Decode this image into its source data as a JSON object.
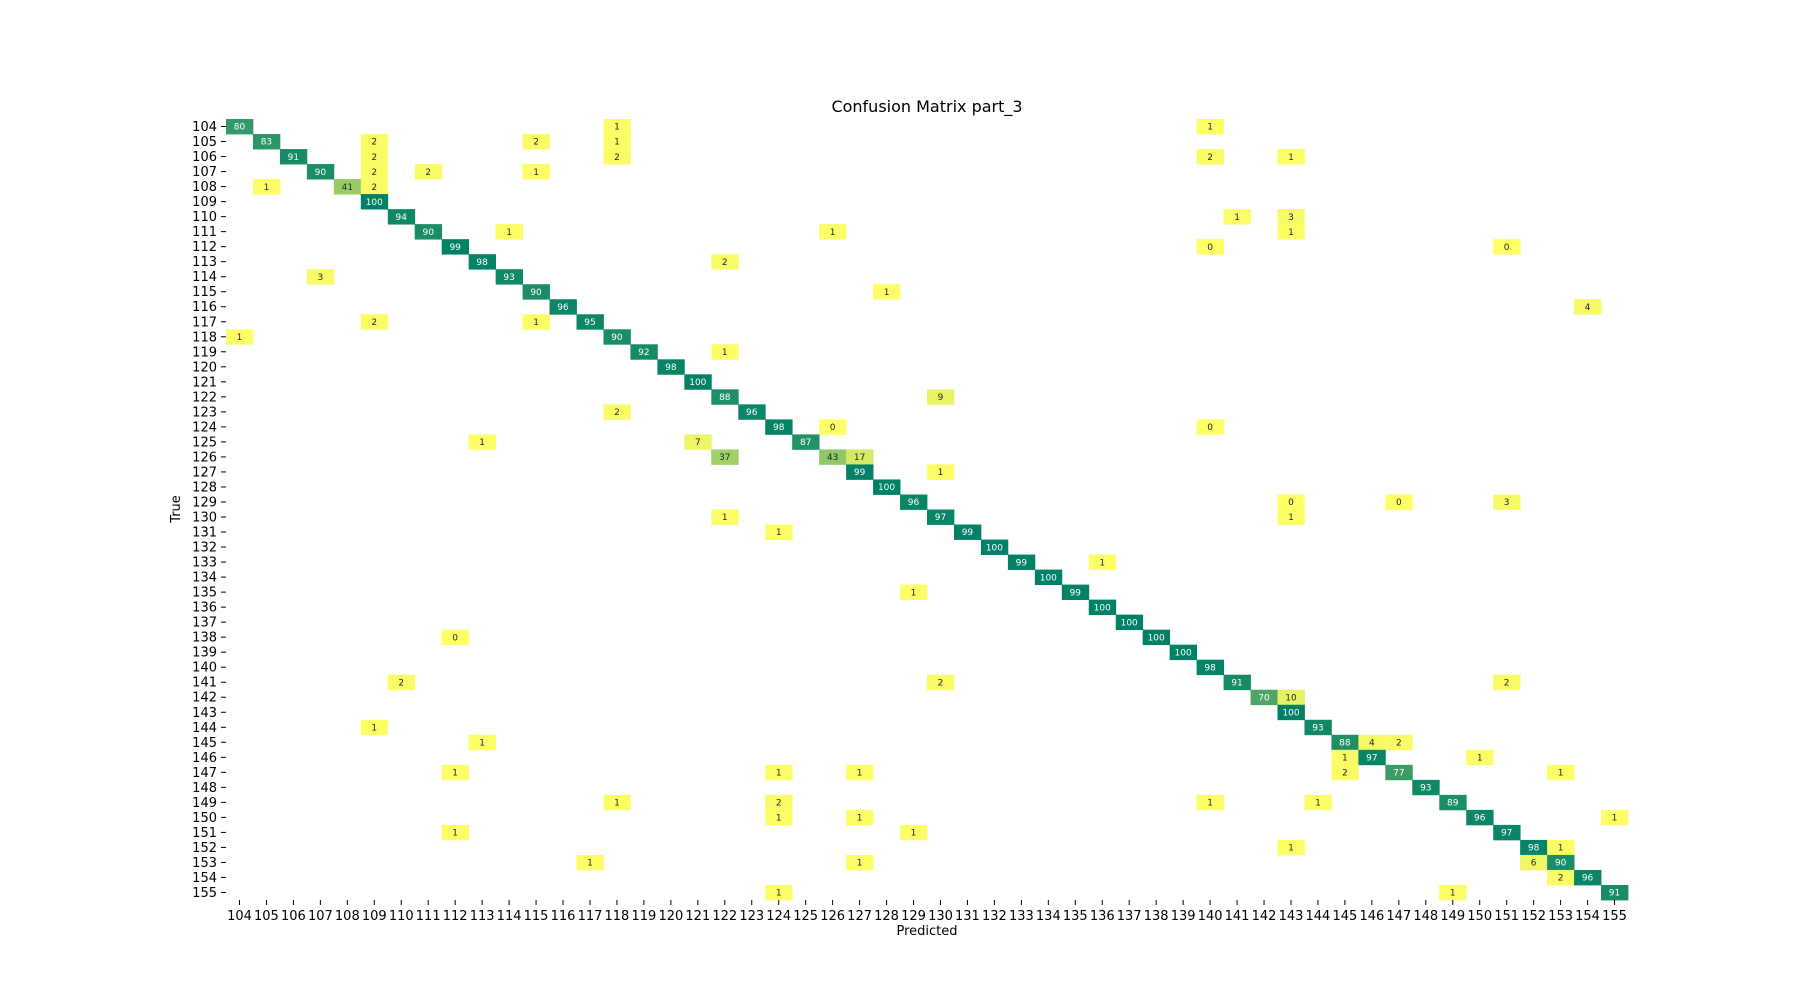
{
  "chart_data": {
    "type": "heatmap",
    "title": "Confusion Matrix part_3",
    "xlabel": "Predicted",
    "ylabel": "True",
    "labels": [
      "104",
      "105",
      "106",
      "107",
      "108",
      "109",
      "110",
      "111",
      "112",
      "113",
      "114",
      "115",
      "116",
      "117",
      "118",
      "119",
      "120",
      "121",
      "122",
      "123",
      "124",
      "125",
      "126",
      "127",
      "128",
      "129",
      "130",
      "131",
      "132",
      "133",
      "134",
      "135",
      "136",
      "137",
      "138",
      "139",
      "140",
      "141",
      "142",
      "143",
      "144",
      "145",
      "146",
      "147",
      "148",
      "149",
      "150",
      "151",
      "152",
      "153",
      "154",
      "155"
    ],
    "cells": [
      {
        "true": "104",
        "pred": "104",
        "value": 80
      },
      {
        "true": "104",
        "pred": "118",
        "value": 1
      },
      {
        "true": "104",
        "pred": "140",
        "value": 1
      },
      {
        "true": "105",
        "pred": "105",
        "value": 83
      },
      {
        "true": "105",
        "pred": "109",
        "value": 2
      },
      {
        "true": "105",
        "pred": "115",
        "value": 2
      },
      {
        "true": "105",
        "pred": "118",
        "value": 1
      },
      {
        "true": "106",
        "pred": "106",
        "value": 91
      },
      {
        "true": "106",
        "pred": "109",
        "value": 2
      },
      {
        "true": "106",
        "pred": "118",
        "value": 2
      },
      {
        "true": "106",
        "pred": "140",
        "value": 2
      },
      {
        "true": "106",
        "pred": "143",
        "value": 1
      },
      {
        "true": "107",
        "pred": "107",
        "value": 90
      },
      {
        "true": "107",
        "pred": "109",
        "value": 2
      },
      {
        "true": "107",
        "pred": "111",
        "value": 2
      },
      {
        "true": "107",
        "pred": "115",
        "value": 1
      },
      {
        "true": "108",
        "pred": "105",
        "value": 1
      },
      {
        "true": "108",
        "pred": "108",
        "value": 41
      },
      {
        "true": "108",
        "pred": "109",
        "value": 2
      },
      {
        "true": "109",
        "pred": "109",
        "value": 100
      },
      {
        "true": "110",
        "pred": "110",
        "value": 94
      },
      {
        "true": "110",
        "pred": "141",
        "value": 1
      },
      {
        "true": "110",
        "pred": "143",
        "value": 3
      },
      {
        "true": "111",
        "pred": "111",
        "value": 90
      },
      {
        "true": "111",
        "pred": "114",
        "value": 1
      },
      {
        "true": "111",
        "pred": "126",
        "value": 1
      },
      {
        "true": "111",
        "pred": "143",
        "value": 1
      },
      {
        "true": "112",
        "pred": "112",
        "value": 99
      },
      {
        "true": "112",
        "pred": "140",
        "value": 0
      },
      {
        "true": "112",
        "pred": "151",
        "value": 0
      },
      {
        "true": "113",
        "pred": "113",
        "value": 98
      },
      {
        "true": "113",
        "pred": "122",
        "value": 2
      },
      {
        "true": "114",
        "pred": "107",
        "value": 3
      },
      {
        "true": "114",
        "pred": "114",
        "value": 93
      },
      {
        "true": "115",
        "pred": "115",
        "value": 90
      },
      {
        "true": "115",
        "pred": "128",
        "value": 1
      },
      {
        "true": "116",
        "pred": "116",
        "value": 96
      },
      {
        "true": "116",
        "pred": "154",
        "value": 4
      },
      {
        "true": "117",
        "pred": "109",
        "value": 2
      },
      {
        "true": "117",
        "pred": "115",
        "value": 1
      },
      {
        "true": "117",
        "pred": "117",
        "value": 95
      },
      {
        "true": "118",
        "pred": "104",
        "value": 1
      },
      {
        "true": "118",
        "pred": "118",
        "value": 90
      },
      {
        "true": "119",
        "pred": "119",
        "value": 92
      },
      {
        "true": "119",
        "pred": "122",
        "value": 1
      },
      {
        "true": "120",
        "pred": "120",
        "value": 98
      },
      {
        "true": "121",
        "pred": "121",
        "value": 100
      },
      {
        "true": "122",
        "pred": "122",
        "value": 88
      },
      {
        "true": "122",
        "pred": "130",
        "value": 9
      },
      {
        "true": "123",
        "pred": "118",
        "value": 2
      },
      {
        "true": "123",
        "pred": "123",
        "value": 96
      },
      {
        "true": "124",
        "pred": "124",
        "value": 98
      },
      {
        "true": "124",
        "pred": "126",
        "value": 0
      },
      {
        "true": "124",
        "pred": "140",
        "value": 0
      },
      {
        "true": "125",
        "pred": "113",
        "value": 1
      },
      {
        "true": "125",
        "pred": "121",
        "value": 7
      },
      {
        "true": "125",
        "pred": "125",
        "value": 87
      },
      {
        "true": "126",
        "pred": "122",
        "value": 37
      },
      {
        "true": "126",
        "pred": "126",
        "value": 43
      },
      {
        "true": "126",
        "pred": "127",
        "value": 17
      },
      {
        "true": "127",
        "pred": "127",
        "value": 99
      },
      {
        "true": "127",
        "pred": "130",
        "value": 1
      },
      {
        "true": "128",
        "pred": "128",
        "value": 100
      },
      {
        "true": "129",
        "pred": "129",
        "value": 96
      },
      {
        "true": "129",
        "pred": "143",
        "value": 0
      },
      {
        "true": "129",
        "pred": "147",
        "value": 0
      },
      {
        "true": "129",
        "pred": "151",
        "value": 3
      },
      {
        "true": "130",
        "pred": "122",
        "value": 1
      },
      {
        "true": "130",
        "pred": "130",
        "value": 97
      },
      {
        "true": "130",
        "pred": "143",
        "value": 1
      },
      {
        "true": "131",
        "pred": "124",
        "value": 1
      },
      {
        "true": "131",
        "pred": "131",
        "value": 99
      },
      {
        "true": "132",
        "pred": "132",
        "value": 100
      },
      {
        "true": "133",
        "pred": "133",
        "value": 99
      },
      {
        "true": "133",
        "pred": "136",
        "value": 1
      },
      {
        "true": "134",
        "pred": "134",
        "value": 100
      },
      {
        "true": "135",
        "pred": "129",
        "value": 1
      },
      {
        "true": "135",
        "pred": "135",
        "value": 99
      },
      {
        "true": "136",
        "pred": "136",
        "value": 100
      },
      {
        "true": "137",
        "pred": "137",
        "value": 100
      },
      {
        "true": "138",
        "pred": "112",
        "value": 0
      },
      {
        "true": "138",
        "pred": "138",
        "value": 100
      },
      {
        "true": "139",
        "pred": "139",
        "value": 100
      },
      {
        "true": "140",
        "pred": "140",
        "value": 98
      },
      {
        "true": "141",
        "pred": "110",
        "value": 2
      },
      {
        "true": "141",
        "pred": "130",
        "value": 2
      },
      {
        "true": "141",
        "pred": "141",
        "value": 91
      },
      {
        "true": "141",
        "pred": "151",
        "value": 2
      },
      {
        "true": "142",
        "pred": "142",
        "value": 70
      },
      {
        "true": "142",
        "pred": "143",
        "value": 10
      },
      {
        "true": "143",
        "pred": "143",
        "value": 100
      },
      {
        "true": "144",
        "pred": "109",
        "value": 1
      },
      {
        "true": "144",
        "pred": "144",
        "value": 93
      },
      {
        "true": "145",
        "pred": "113",
        "value": 1
      },
      {
        "true": "145",
        "pred": "145",
        "value": 88
      },
      {
        "true": "145",
        "pred": "146",
        "value": 4
      },
      {
        "true": "145",
        "pred": "147",
        "value": 2
      },
      {
        "true": "146",
        "pred": "145",
        "value": 1
      },
      {
        "true": "146",
        "pred": "146",
        "value": 97
      },
      {
        "true": "146",
        "pred": "150",
        "value": 1
      },
      {
        "true": "147",
        "pred": "112",
        "value": 1
      },
      {
        "true": "147",
        "pred": "124",
        "value": 1
      },
      {
        "true": "147",
        "pred": "127",
        "value": 1
      },
      {
        "true": "147",
        "pred": "145",
        "value": 2
      },
      {
        "true": "147",
        "pred": "147",
        "value": 77
      },
      {
        "true": "147",
        "pred": "153",
        "value": 1
      },
      {
        "true": "148",
        "pred": "148",
        "value": 93
      },
      {
        "true": "149",
        "pred": "118",
        "value": 1
      },
      {
        "true": "149",
        "pred": "124",
        "value": 2
      },
      {
        "true": "149",
        "pred": "140",
        "value": 1
      },
      {
        "true": "149",
        "pred": "144",
        "value": 1
      },
      {
        "true": "149",
        "pred": "149",
        "value": 89
      },
      {
        "true": "150",
        "pred": "124",
        "value": 1
      },
      {
        "true": "150",
        "pred": "127",
        "value": 1
      },
      {
        "true": "150",
        "pred": "150",
        "value": 96
      },
      {
        "true": "150",
        "pred": "155",
        "value": 1
      },
      {
        "true": "151",
        "pred": "112",
        "value": 1
      },
      {
        "true": "151",
        "pred": "129",
        "value": 1
      },
      {
        "true": "151",
        "pred": "151",
        "value": 97
      },
      {
        "true": "152",
        "pred": "143",
        "value": 1
      },
      {
        "true": "152",
        "pred": "152",
        "value": 98
      },
      {
        "true": "152",
        "pred": "153",
        "value": 1
      },
      {
        "true": "153",
        "pred": "117",
        "value": 1
      },
      {
        "true": "153",
        "pred": "127",
        "value": 1
      },
      {
        "true": "153",
        "pred": "152",
        "value": 6
      },
      {
        "true": "153",
        "pred": "153",
        "value": 90
      },
      {
        "true": "154",
        "pred": "153",
        "value": 2
      },
      {
        "true": "154",
        "pred": "154",
        "value": 96
      },
      {
        "true": "155",
        "pred": "124",
        "value": 1
      },
      {
        "true": "155",
        "pred": "149",
        "value": 1
      },
      {
        "true": "155",
        "pred": "155",
        "value": 91
      }
    ],
    "colormap": "summer_r",
    "color_low": "#ffff66",
    "color_high": "#008066",
    "vmin": 0,
    "vmax": 100,
    "grid": false,
    "legend": "none"
  }
}
